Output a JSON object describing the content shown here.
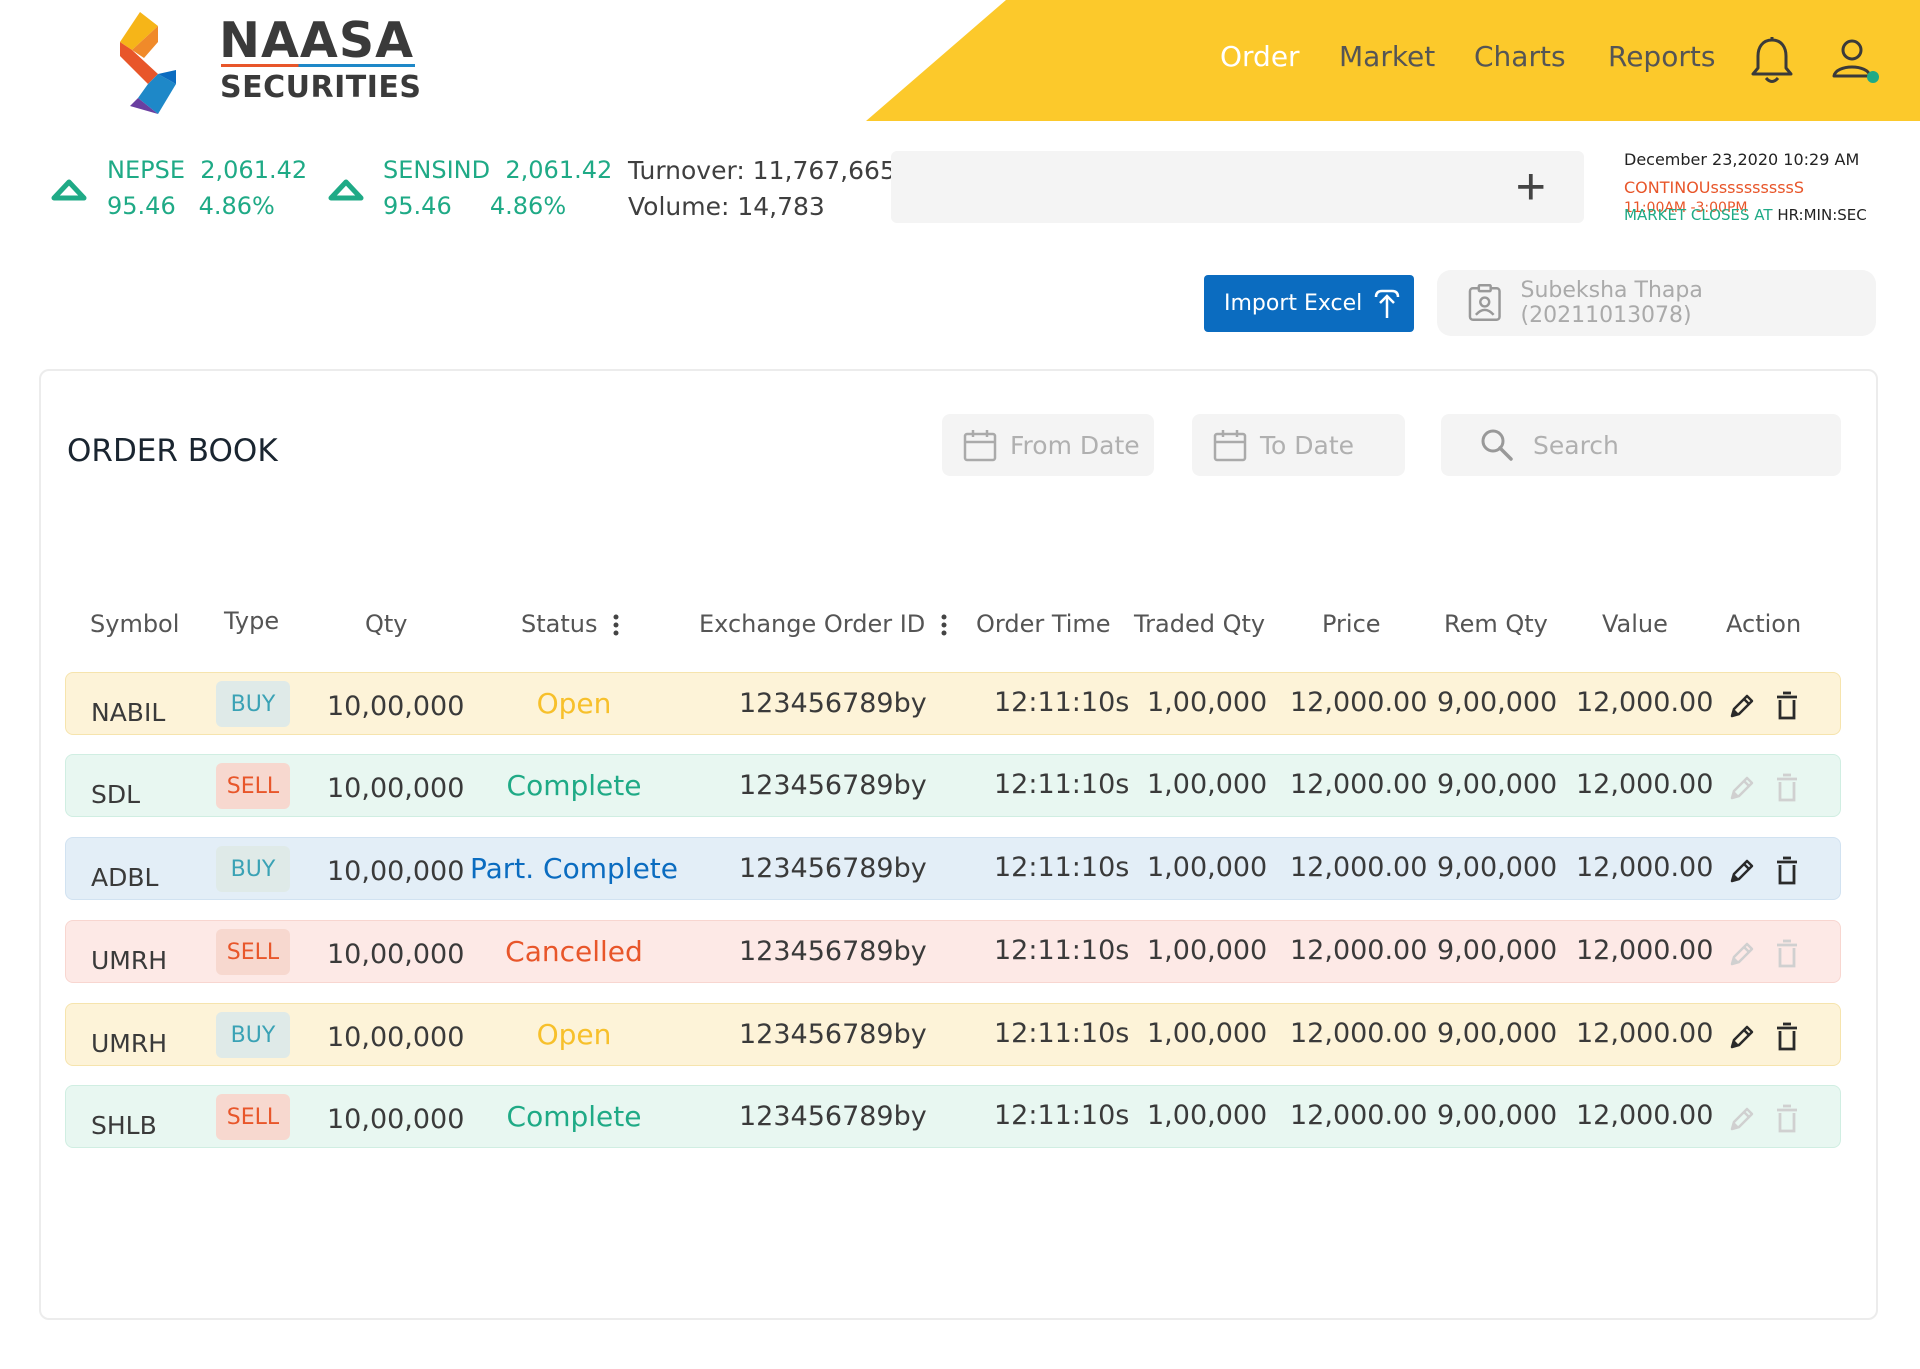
{
  "brand": {
    "name": "NAASA",
    "sub": "SECURITIES"
  },
  "nav": {
    "order": "Order",
    "market": "Market",
    "charts": "Charts",
    "reports": "Reports"
  },
  "indices": [
    {
      "name": "NEPSE",
      "value": "2,061.42",
      "change": "95.46",
      "percent": "4.86%"
    },
    {
      "name": "SENSIND",
      "value": "2,061.42",
      "change": "95.46",
      "percent": "4.86%"
    }
  ],
  "stats": {
    "turnover": "Turnover: 11,767,665",
    "volume": "Volume: 14,783"
  },
  "market": {
    "datetime": "December 23,2020 10:29 AM",
    "state": "CONTINOUssssssssssS",
    "hours": "11:00AM -3:00PM",
    "closes_label": "MARKET CLOSES AT",
    "closes_value": "HR:MIN:SEC"
  },
  "import_label": "Import Excel",
  "client": "Subeksha Thapa (20211013078)",
  "orderbook": {
    "title": "ORDER BOOK",
    "from_date": "From Date",
    "to_date": "To Date",
    "search": "Search",
    "columns": [
      "Symbol",
      "Type",
      "Qty",
      "Status",
      "Exchange Order ID",
      "Order Time",
      "Traded Qty",
      "Price",
      "Rem Qty",
      "Value",
      "Action"
    ],
    "rows": [
      {
        "symbol": "NABIL",
        "type": "BUY",
        "qty": "10,00,000",
        "status": "Open",
        "order_id": "123456789by",
        "time": "12:11:10s",
        "traded": "1,00,000",
        "price": "12,000.00",
        "rem": "9,00,000",
        "value": "12,000.00"
      },
      {
        "symbol": "SDL",
        "type": "SELL",
        "qty": "10,00,000",
        "status": "Complete",
        "order_id": "123456789by",
        "time": "12:11:10s",
        "traded": "1,00,000",
        "price": "12,000.00",
        "rem": "9,00,000",
        "value": "12,000.00"
      },
      {
        "symbol": "ADBL",
        "type": "BUY",
        "qty": "10,00,000",
        "status": "Part. Complete",
        "order_id": "123456789by",
        "time": "12:11:10s",
        "traded": "1,00,000",
        "price": "12,000.00",
        "rem": "9,00,000",
        "value": "12,000.00"
      },
      {
        "symbol": "UMRH",
        "type": "SELL",
        "qty": "10,00,000",
        "status": "Cancelled",
        "order_id": "123456789by",
        "time": "12:11:10s",
        "traded": "1,00,000",
        "price": "12,000.00",
        "rem": "9,00,000",
        "value": "12,000.00"
      },
      {
        "symbol": "UMRH",
        "type": "BUY",
        "qty": "10,00,000",
        "status": "Open",
        "order_id": "123456789by",
        "time": "12:11:10s",
        "traded": "1,00,000",
        "price": "12,000.00",
        "rem": "9,00,000",
        "value": "12,000.00"
      },
      {
        "symbol": "SHLB",
        "type": "SELL",
        "qty": "10,00,000",
        "status": "Complete",
        "order_id": "123456789by",
        "time": "12:11:10s",
        "traded": "1,00,000",
        "price": "12,000.00",
        "rem": "9,00,000",
        "value": "12,000.00"
      }
    ]
  },
  "icons": {
    "up": "triangle-up-icon",
    "bell": "bell-icon",
    "user": "user-icon",
    "plus": "plus-icon",
    "upload": "upload-icon",
    "client": "id-badge-icon",
    "calendar": "calendar-icon",
    "search": "search-icon",
    "kebab": "kebab-icon",
    "edit": "pencil-icon",
    "delete": "trash-icon"
  },
  "colors": {
    "yellow": "#fcc92b",
    "green": "#1faa86",
    "orange": "#e8562a",
    "blue": "#0b6cc0",
    "online": "#1faa86"
  }
}
